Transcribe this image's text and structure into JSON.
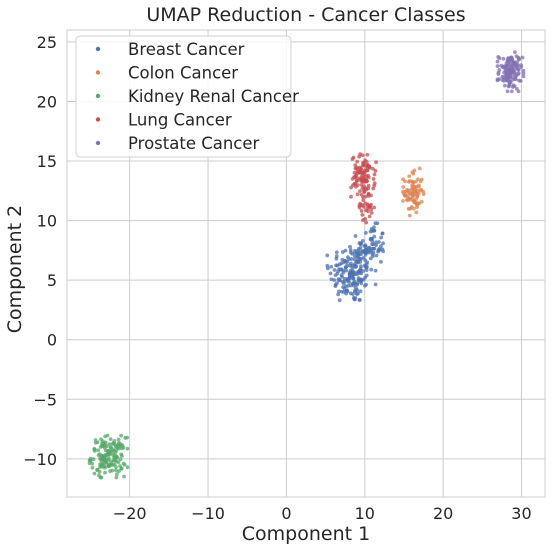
{
  "chart_data": {
    "type": "scatter",
    "title": "UMAP Reduction - Cancer Classes",
    "xlabel": "Component 1",
    "ylabel": "Component 2",
    "xlim": [
      -28,
      33
    ],
    "ylim": [
      -13.2,
      26
    ],
    "xticks": [
      -20,
      -10,
      0,
      10,
      20,
      30
    ],
    "yticks": [
      -10,
      -5,
      0,
      5,
      10,
      15,
      20,
      25
    ],
    "x_tick_labels": [
      "−20",
      "−10",
      "0",
      "10",
      "20",
      "30"
    ],
    "y_tick_labels": [
      "−10",
      "−5",
      "0",
      "5",
      "10",
      "15",
      "20",
      "25"
    ],
    "grid": true,
    "legend_position": "top-left",
    "series": [
      {
        "name": "Breast Cancer",
        "color": "#4c72b0",
        "clusters": [
          {
            "center": [
              8.3,
              5.6
            ],
            "spread": [
              1.4,
              1.3
            ],
            "count": 170
          },
          {
            "center": [
              10.8,
              7.8
            ],
            "spread": [
              0.9,
              0.9
            ],
            "count": 70
          }
        ]
      },
      {
        "name": "Colon Cancer",
        "color": "#dd8452",
        "clusters": [
          {
            "center": [
              16.2,
              12.4
            ],
            "spread": [
              0.6,
              0.9
            ],
            "count": 80
          }
        ]
      },
      {
        "name": "Kidney Renal Cancer",
        "color": "#55a868",
        "clusters": [
          {
            "center": [
              -22.7,
              -9.8
            ],
            "spread": [
              1.1,
              0.8
            ],
            "count": 150
          }
        ]
      },
      {
        "name": "Lung Cancer",
        "color": "#c44e52",
        "clusters": [
          {
            "center": [
              9.8,
              13.7
            ],
            "spread": [
              0.75,
              0.9
            ],
            "count": 100
          },
          {
            "center": [
              10.1,
              11.2
            ],
            "spread": [
              0.5,
              0.7
            ],
            "count": 30
          }
        ]
      },
      {
        "name": "Prostate Cancer",
        "color": "#8172b3",
        "clusters": [
          {
            "center": [
              28.6,
              22.5
            ],
            "spread": [
              0.75,
              0.75
            ],
            "count": 130
          }
        ]
      }
    ]
  }
}
